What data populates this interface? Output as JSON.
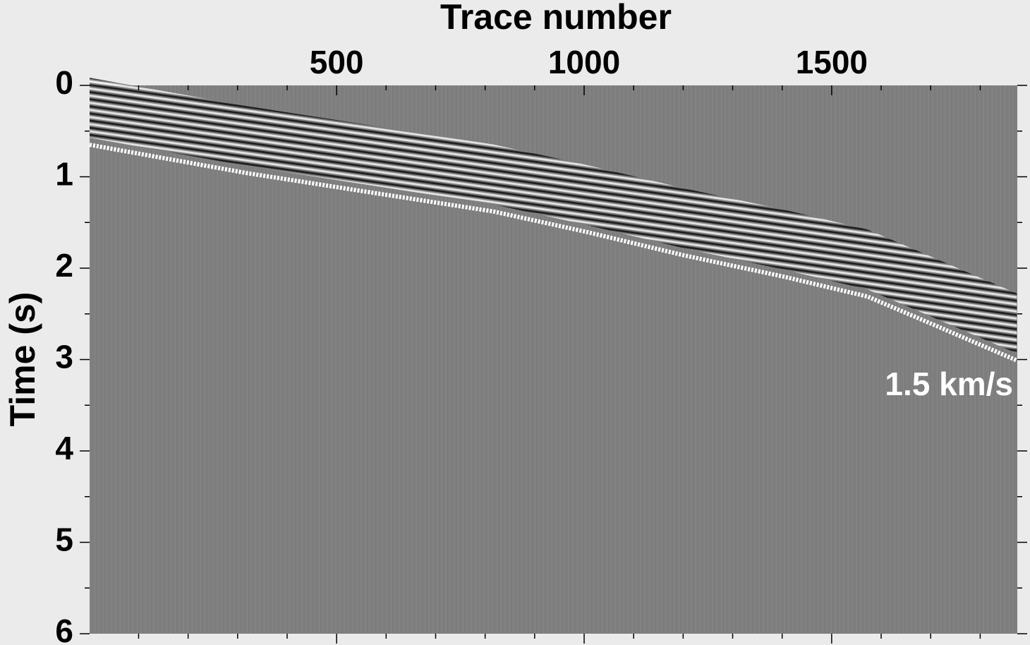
{
  "chart_data": {
    "type": "seismic",
    "xlabel": "Trace number",
    "ylabel": "Time (s)",
    "annotation": "1.5 km/s",
    "xlim": [
      1,
      1875
    ],
    "ylim": [
      6,
      0
    ],
    "xticks": [
      500,
      1000,
      1500
    ],
    "xminorticks": [
      100,
      200,
      300,
      400,
      600,
      700,
      800,
      900,
      1100,
      1200,
      1300,
      1400,
      1600,
      1700,
      1800
    ],
    "yticks": [
      0,
      1,
      2,
      3,
      4,
      5,
      6
    ],
    "yminorticks": [
      0.5,
      1.5,
      2.5,
      3.5,
      4.5,
      5.5
    ],
    "series": [
      {
        "color": "#ffffff",
        "x": [
          1,
          319,
          532,
          817,
          1002,
          1202,
          1401,
          1572,
          1672,
          1874
        ],
        "values": [
          0.65,
          0.96,
          1.14,
          1.38,
          1.6,
          1.86,
          2.09,
          2.31,
          2.54,
          3.01
        ]
      }
    ]
  }
}
